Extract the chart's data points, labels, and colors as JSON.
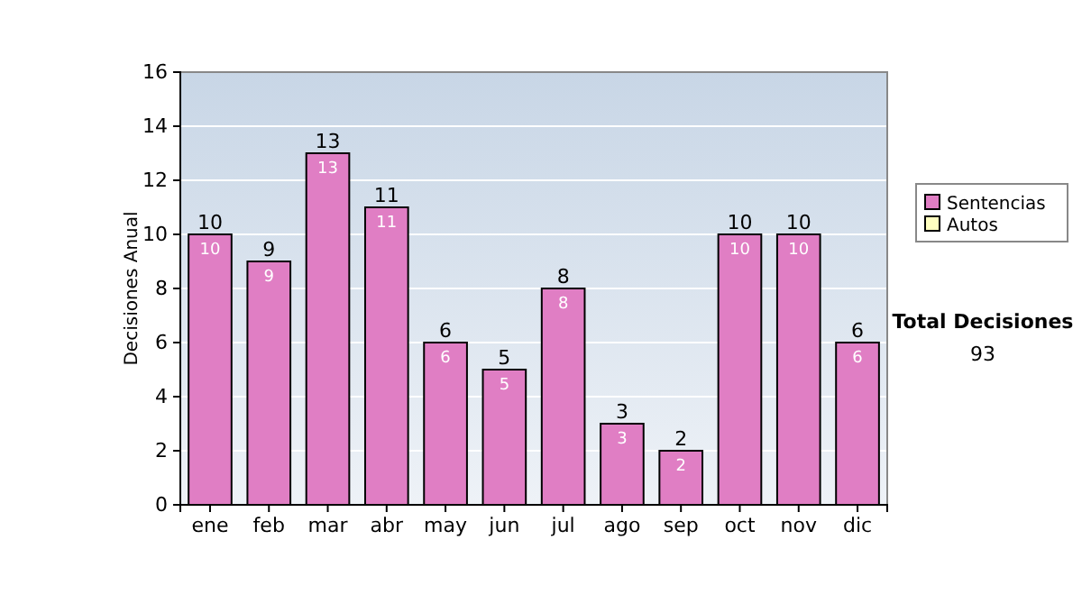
{
  "chart_data": {
    "type": "bar",
    "stacked": true,
    "ylabel": "Decisiones Anual",
    "categories": [
      "ene",
      "feb",
      "mar",
      "abr",
      "may",
      "jun",
      "jul",
      "ago",
      "sep",
      "oct",
      "nov",
      "dic"
    ],
    "series": [
      {
        "name": "Sentencias",
        "color": "#e07ec4",
        "values": [
          10,
          9,
          13,
          11,
          6,
          5,
          8,
          3,
          2,
          10,
          10,
          6
        ]
      },
      {
        "name": "Autos",
        "color": "#ffffc0",
        "values": [
          null,
          null,
          null,
          null,
          null,
          null,
          null,
          null,
          null,
          null,
          null,
          null
        ]
      }
    ],
    "totals": [
      "10",
      "9",
      "13",
      "11",
      "6",
      "5",
      "8",
      "3",
      "2",
      "10",
      "10",
      "6"
    ],
    "data_labels": true,
    "ylim": [
      0,
      16
    ],
    "yticks": [
      0,
      2,
      4,
      6,
      8,
      10,
      12,
      14,
      16
    ],
    "grid": "y",
    "legend": "right",
    "annotations": [
      "Total Decisiones",
      "93"
    ]
  }
}
